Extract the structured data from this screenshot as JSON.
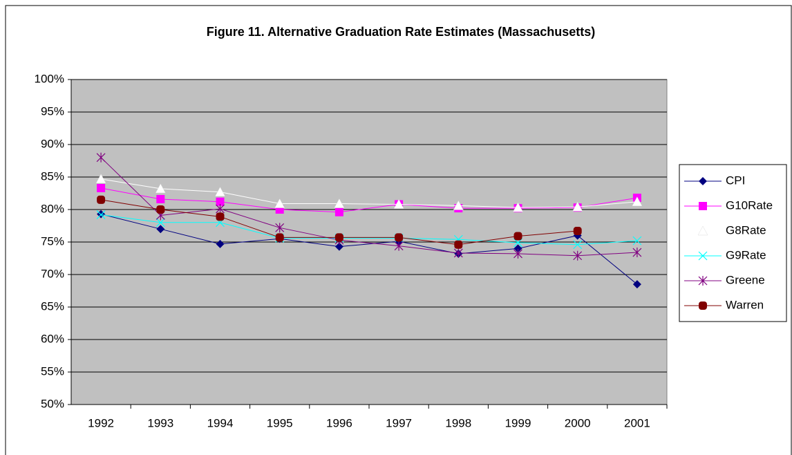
{
  "chart_data": {
    "type": "line",
    "title": "Figure 11. Alternative Graduation Rate Estimates (Massachusetts)",
    "categories": [
      "1992",
      "1993",
      "1994",
      "1995",
      "1996",
      "1997",
      "1998",
      "1999",
      "2000",
      "2001"
    ],
    "ylim": [
      50,
      100
    ],
    "yticks": [
      {
        "value": 50,
        "label": "50%"
      },
      {
        "value": 55,
        "label": "55%"
      },
      {
        "value": 60,
        "label": "60%"
      },
      {
        "value": 65,
        "label": "65%"
      },
      {
        "value": 70,
        "label": "70%"
      },
      {
        "value": 75,
        "label": "75%"
      },
      {
        "value": 80,
        "label": "80%"
      },
      {
        "value": 85,
        "label": "85%"
      },
      {
        "value": 90,
        "label": "90%"
      },
      {
        "value": 95,
        "label": "95%"
      },
      {
        "value": 100,
        "label": "100%"
      }
    ],
    "grid": true,
    "legend": "right",
    "series": [
      {
        "name": "CPI",
        "color": "#000080",
        "marker": "diamond",
        "values": [
          79.3,
          77.0,
          74.7,
          75.5,
          74.3,
          75.1,
          73.2,
          74.0,
          76.0,
          68.5
        ]
      },
      {
        "name": "G10Rate",
        "color": "#ff00ff",
        "marker": "square",
        "values": [
          83.3,
          81.6,
          81.2,
          80.0,
          79.6,
          80.8,
          80.2,
          80.2,
          80.3,
          81.8
        ]
      },
      {
        "name": "G8Rate",
        "color": "#ffffff",
        "marker": "triangle",
        "values": [
          84.7,
          83.2,
          82.7,
          80.9,
          80.9,
          80.8,
          80.6,
          80.3,
          80.4,
          81.2
        ]
      },
      {
        "name": "G9Rate",
        "color": "#00ffff",
        "marker": "x",
        "values": [
          79.2,
          78.0,
          78.0,
          75.6,
          75.6,
          75.6,
          75.4,
          74.9,
          74.6,
          75.2
        ]
      },
      {
        "name": "Greene",
        "color": "#800080",
        "marker": "star",
        "values": [
          88.0,
          79.1,
          80.1,
          77.2,
          75.3,
          74.4,
          73.3,
          73.2,
          72.9,
          73.4
        ]
      },
      {
        "name": "Warren",
        "color": "#800000",
        "marker": "circle",
        "values": [
          81.5,
          80.0,
          78.9,
          75.7,
          75.7,
          75.7,
          74.6,
          75.9,
          76.7,
          null
        ]
      }
    ]
  }
}
